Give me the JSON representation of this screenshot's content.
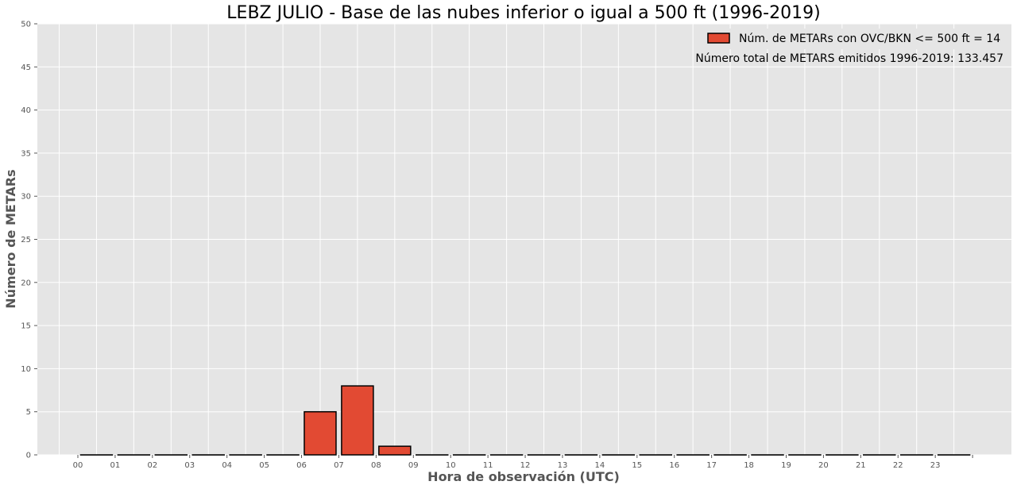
{
  "chart_data": {
    "type": "bar",
    "title": "LEBZ JULIO - Base de las nubes inferior o igual a 500 ft (1996-2019)",
    "xlabel": "Hora de observación (UTC)",
    "ylabel": "Número de METARs",
    "categories": [
      "00",
      "01",
      "02",
      "03",
      "04",
      "05",
      "06",
      "07",
      "08",
      "09",
      "10",
      "11",
      "12",
      "13",
      "14",
      "15",
      "16",
      "17",
      "18",
      "19",
      "20",
      "21",
      "22",
      "23"
    ],
    "series": [
      {
        "name": "Núm. de METARs con OVC/BKN <= 500 ft = 14",
        "values": [
          0,
          0,
          0,
          0,
          0,
          0,
          5,
          8,
          1,
          0,
          0,
          0,
          0,
          0,
          0,
          0,
          0,
          0,
          0,
          0,
          0,
          0,
          0,
          0
        ]
      }
    ],
    "ylim": [
      0,
      50
    ],
    "yticks": [
      0,
      5,
      10,
      15,
      20,
      25,
      30,
      35,
      40,
      45,
      50
    ],
    "grid": true,
    "legend_position": "top-right",
    "annotation": "Número total de METARS emitidos 1996-2019:  133.457",
    "colors": {
      "bar": "#E24A33",
      "bar_edge": "#000000",
      "plot_bg": "#E5E5E5",
      "grid": "#FFFFFF"
    }
  }
}
